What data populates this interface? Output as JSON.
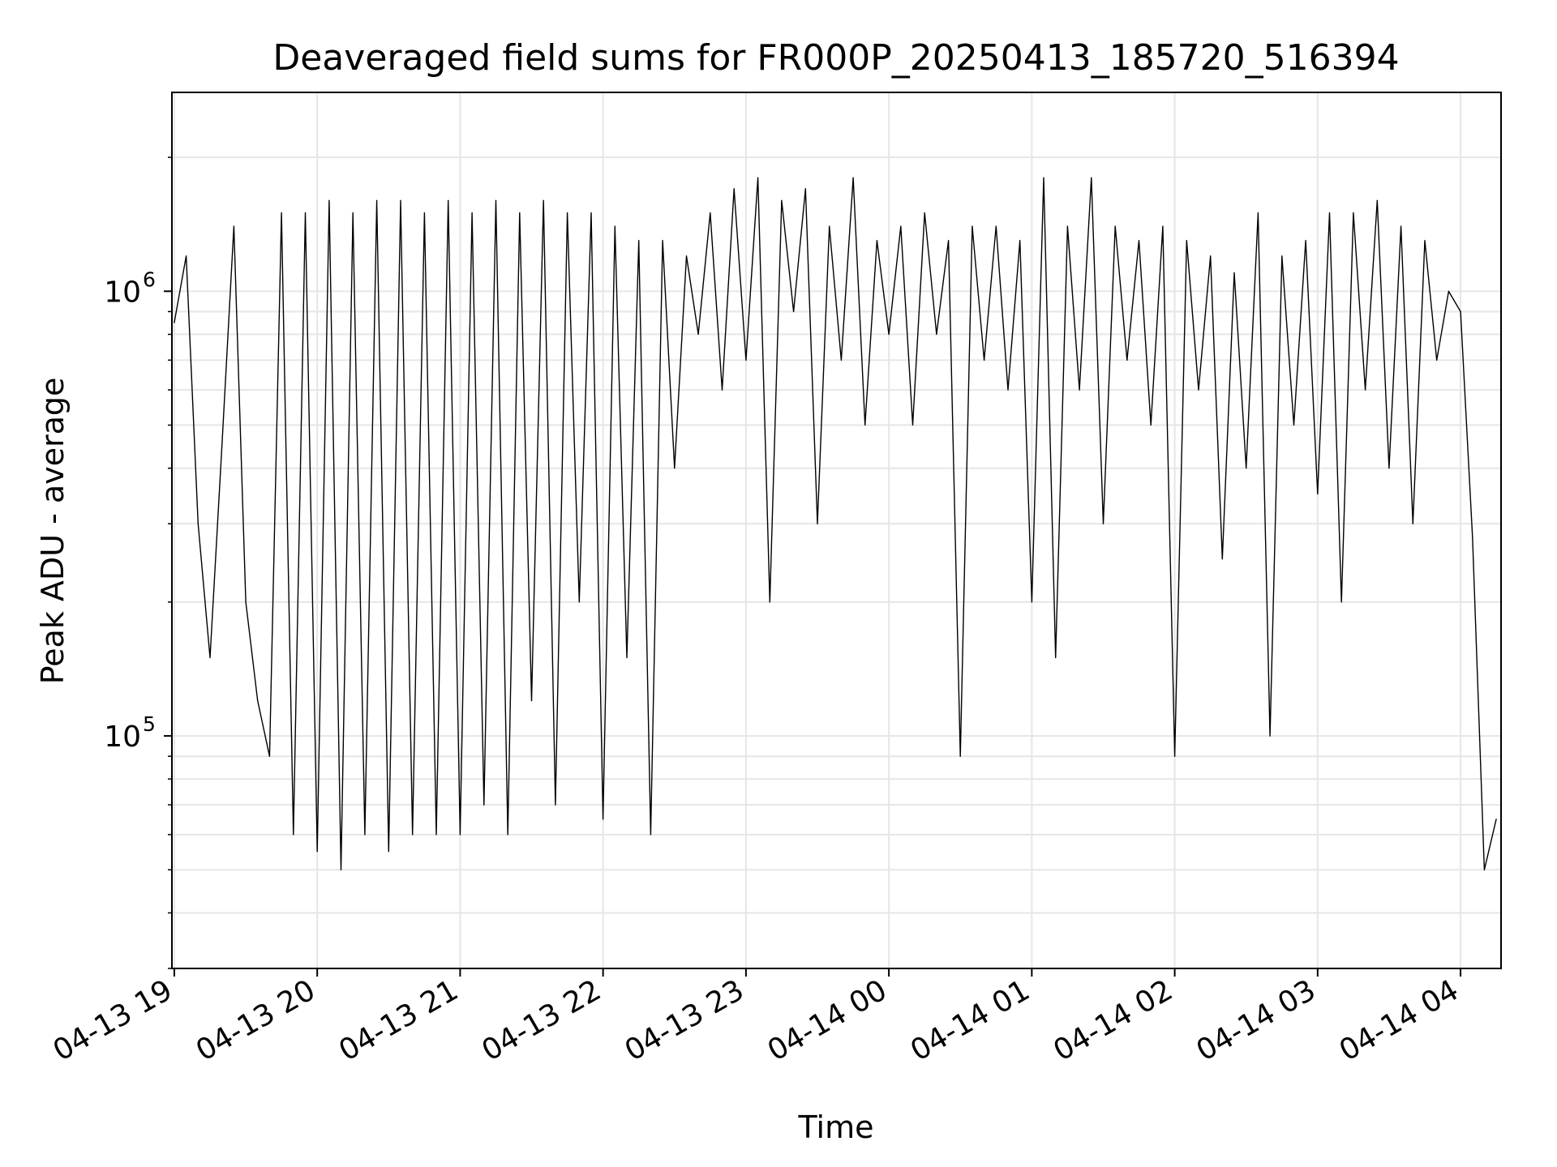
{
  "chart_data": {
    "type": "line",
    "title": "Deaveraged field sums for FR000P_20250413_185720_516394",
    "xlabel": "Time",
    "ylabel": "Peak ADU - average",
    "yscale": "log",
    "ylim": [
      30000,
      2800000
    ],
    "xlim": [
      "2025-04-13 18:59",
      "2025-04-14 04:17"
    ],
    "x_ticks": [
      {
        "t": "2025-04-13 19:00",
        "label": "04-13 19"
      },
      {
        "t": "2025-04-13 20:00",
        "label": "04-13 20"
      },
      {
        "t": "2025-04-13 21:00",
        "label": "04-13 21"
      },
      {
        "t": "2025-04-13 22:00",
        "label": "04-13 22"
      },
      {
        "t": "2025-04-13 23:00",
        "label": "04-13 23"
      },
      {
        "t": "2025-04-14 00:00",
        "label": "04-14 00"
      },
      {
        "t": "2025-04-14 01:00",
        "label": "04-14 01"
      },
      {
        "t": "2025-04-14 02:00",
        "label": "04-14 02"
      },
      {
        "t": "2025-04-14 03:00",
        "label": "04-14 03"
      },
      {
        "t": "2025-04-14 04:00",
        "label": "04-14 04"
      }
    ],
    "y_major_ticks": [
      {
        "value": 100000,
        "base": "10",
        "exp": "5"
      },
      {
        "value": 1000000,
        "base": "10",
        "exp": "6"
      }
    ],
    "grid": true,
    "line_color": "#000000",
    "series": [
      {
        "x": [
          "2025-04-13 19:00",
          "2025-04-13 19:05",
          "2025-04-13 19:10",
          "2025-04-13 19:15",
          "2025-04-13 19:20",
          "2025-04-13 19:25",
          "2025-04-13 19:30",
          "2025-04-13 19:35",
          "2025-04-13 19:40",
          "2025-04-13 19:45",
          "2025-04-13 19:50",
          "2025-04-13 19:55",
          "2025-04-13 20:00",
          "2025-04-13 20:05",
          "2025-04-13 20:10",
          "2025-04-13 20:15",
          "2025-04-13 20:20",
          "2025-04-13 20:25",
          "2025-04-13 20:30",
          "2025-04-13 20:35",
          "2025-04-13 20:40",
          "2025-04-13 20:45",
          "2025-04-13 20:50",
          "2025-04-13 20:55",
          "2025-04-13 21:00",
          "2025-04-13 21:05",
          "2025-04-13 21:10",
          "2025-04-13 21:15",
          "2025-04-13 21:20",
          "2025-04-13 21:25",
          "2025-04-13 21:30",
          "2025-04-13 21:35",
          "2025-04-13 21:40",
          "2025-04-13 21:45",
          "2025-04-13 21:50",
          "2025-04-13 21:55",
          "2025-04-13 22:00",
          "2025-04-13 22:05",
          "2025-04-13 22:10",
          "2025-04-13 22:15",
          "2025-04-13 22:20",
          "2025-04-13 22:25",
          "2025-04-13 22:30",
          "2025-04-13 22:35",
          "2025-04-13 22:40",
          "2025-04-13 22:45",
          "2025-04-13 22:50",
          "2025-04-13 22:55",
          "2025-04-13 23:00",
          "2025-04-13 23:05",
          "2025-04-13 23:10",
          "2025-04-13 23:15",
          "2025-04-13 23:20",
          "2025-04-13 23:25",
          "2025-04-13 23:30",
          "2025-04-13 23:35",
          "2025-04-13 23:40",
          "2025-04-13 23:45",
          "2025-04-13 23:50",
          "2025-04-13 23:55",
          "2025-04-14 00:00",
          "2025-04-14 00:05",
          "2025-04-14 00:10",
          "2025-04-14 00:15",
          "2025-04-14 00:20",
          "2025-04-14 00:25",
          "2025-04-14 00:30",
          "2025-04-14 00:35",
          "2025-04-14 00:40",
          "2025-04-14 00:45",
          "2025-04-14 00:50",
          "2025-04-14 00:55",
          "2025-04-14 01:00",
          "2025-04-14 01:05",
          "2025-04-14 01:10",
          "2025-04-14 01:15",
          "2025-04-14 01:20",
          "2025-04-14 01:25",
          "2025-04-14 01:30",
          "2025-04-14 01:35",
          "2025-04-14 01:40",
          "2025-04-14 01:45",
          "2025-04-14 01:50",
          "2025-04-14 01:55",
          "2025-04-14 02:00",
          "2025-04-14 02:05",
          "2025-04-14 02:10",
          "2025-04-14 02:15",
          "2025-04-14 02:20",
          "2025-04-14 02:25",
          "2025-04-14 02:30",
          "2025-04-14 02:35",
          "2025-04-14 02:40",
          "2025-04-14 02:45",
          "2025-04-14 02:50",
          "2025-04-14 02:55",
          "2025-04-14 03:00",
          "2025-04-14 03:05",
          "2025-04-14 03:10",
          "2025-04-14 03:15",
          "2025-04-14 03:20",
          "2025-04-14 03:25",
          "2025-04-14 03:30",
          "2025-04-14 03:35",
          "2025-04-14 03:40",
          "2025-04-14 03:45",
          "2025-04-14 03:50",
          "2025-04-14 03:55",
          "2025-04-14 04:00",
          "2025-04-14 04:05",
          "2025-04-14 04:10",
          "2025-04-14 04:15"
        ],
        "values": [
          850000,
          1200000,
          300000,
          150000,
          450000,
          1400000,
          200000,
          120000,
          90000,
          1500000,
          60000,
          1500000,
          55000,
          1600000,
          50000,
          1500000,
          60000,
          1600000,
          55000,
          1600000,
          60000,
          1500000,
          60000,
          1600000,
          60000,
          1500000,
          70000,
          1600000,
          60000,
          1500000,
          120000,
          1600000,
          70000,
          1500000,
          200000,
          1500000,
          65000,
          1400000,
          150000,
          1300000,
          60000,
          1300000,
          400000,
          1200000,
          800000,
          1500000,
          600000,
          1700000,
          700000,
          1800000,
          200000,
          1600000,
          900000,
          1700000,
          300000,
          1400000,
          700000,
          1800000,
          500000,
          1300000,
          800000,
          1400000,
          500000,
          1500000,
          800000,
          1300000,
          90000,
          1400000,
          700000,
          1400000,
          600000,
          1300000,
          200000,
          1800000,
          150000,
          1400000,
          600000,
          1800000,
          300000,
          1400000,
          700000,
          1300000,
          500000,
          1400000,
          90000,
          1300000,
          600000,
          1200000,
          250000,
          1100000,
          400000,
          1500000,
          100000,
          1200000,
          500000,
          1300000,
          350000,
          1500000,
          200000,
          1500000,
          600000,
          1600000,
          400000,
          1400000,
          300000,
          1300000,
          700000,
          1000000,
          900000,
          280000,
          50000,
          65000
        ]
      }
    ]
  }
}
